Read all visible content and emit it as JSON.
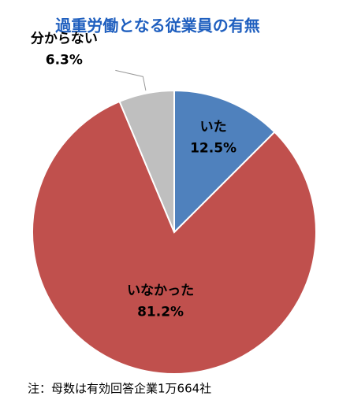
{
  "chart_data": {
    "type": "pie",
    "title": "過重労働となる従業員の有無",
    "categories": [
      "いた",
      "いなかった",
      "分からない"
    ],
    "values": [
      12.5,
      81.2,
      6.3
    ],
    "value_labels": [
      "12.5%",
      "81.2%",
      "6.3%"
    ],
    "colors": [
      "#4f81bd",
      "#c0504d",
      "#bfbfbf"
    ],
    "note": "注：母数は有効回答企業1万664社"
  }
}
